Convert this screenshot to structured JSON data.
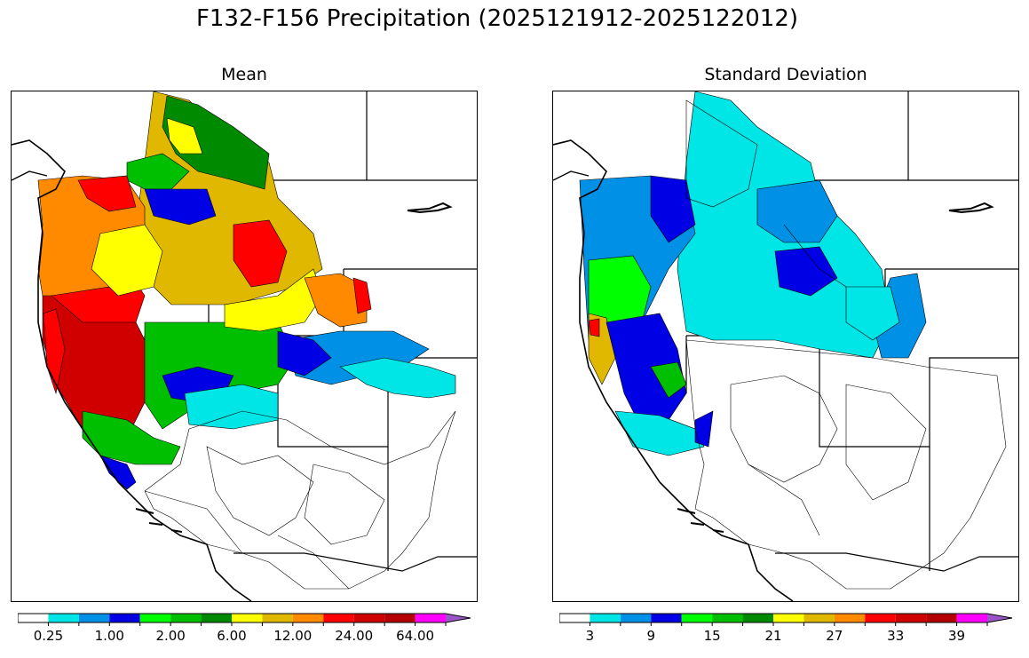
{
  "figure": {
    "title": "F132-F156 Precipitation (2025121912-2025122012)"
  },
  "panels": [
    {
      "title": "Mean",
      "colorbar": {
        "colors": [
          "#ffffff",
          "#00e5e5",
          "#0090e5",
          "#0000e5",
          "#00ff00",
          "#00bf00",
          "#008a00",
          "#ffff00",
          "#e0b800",
          "#ff8a00",
          "#ff0000",
          "#d00000",
          "#b40000",
          "#ff00ff",
          "#9a55c8"
        ],
        "tick_labels": [
          "0.25",
          "1.00",
          "2.00",
          "6.00",
          "12.00",
          "24.00",
          "64.00"
        ],
        "extend": "max"
      }
    },
    {
      "title": "Standard Deviation",
      "colorbar": {
        "colors": [
          "#ffffff",
          "#00e5e5",
          "#0090e5",
          "#0000e5",
          "#00ff00",
          "#00bf00",
          "#008a00",
          "#ffff00",
          "#e0b800",
          "#ff8a00",
          "#ff0000",
          "#d00000",
          "#b40000",
          "#ff00ff",
          "#9a55c8"
        ],
        "tick_labels": [
          "3",
          "9",
          "15",
          "21",
          "27",
          "33",
          "39"
        ],
        "extend": "max"
      }
    }
  ]
}
